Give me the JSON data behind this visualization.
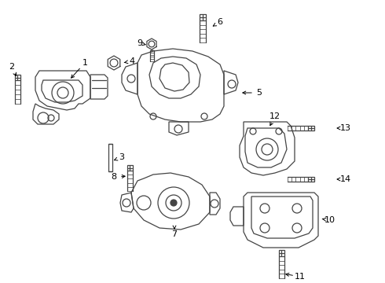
{
  "background_color": "#ffffff",
  "line_color": "#444444",
  "text_color": "#000000",
  "fig_width": 4.9,
  "fig_height": 3.6,
  "dpi": 100
}
